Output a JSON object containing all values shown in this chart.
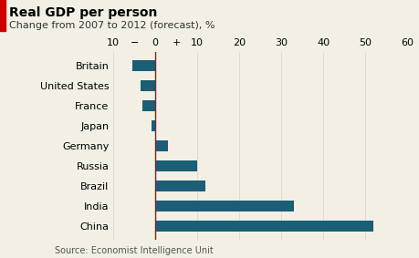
{
  "title": "Real GDP per person",
  "subtitle": "Change from 2007 to 2012 (forecast), %",
  "source": "Source: Economist Intelligence Unit",
  "categories": [
    "China",
    "India",
    "Brazil",
    "Russia",
    "Germany",
    "Japan",
    "France",
    "United States",
    "Britain"
  ],
  "values": [
    52,
    33,
    12,
    10,
    3,
    -1,
    -3,
    -3.5,
    -5.5
  ],
  "bar_color": "#1b5e75",
  "redline_color": "#cc0000",
  "xlim": [
    -10,
    60
  ],
  "xtick_positions": [
    -10,
    -5,
    0,
    5,
    10,
    20,
    30,
    40,
    50,
    60
  ],
  "xtick_labels": [
    "10",
    "−",
    "0",
    "+",
    "10",
    "20",
    "30",
    "40",
    "50",
    "60"
  ],
  "grid_positions": [
    -10,
    0,
    10,
    20,
    30,
    40,
    50,
    60
  ],
  "title_fontsize": 10,
  "subtitle_fontsize": 8,
  "label_fontsize": 8,
  "tick_fontsize": 8,
  "source_fontsize": 7,
  "background_color": "#f2efe4",
  "bar_height": 0.55
}
